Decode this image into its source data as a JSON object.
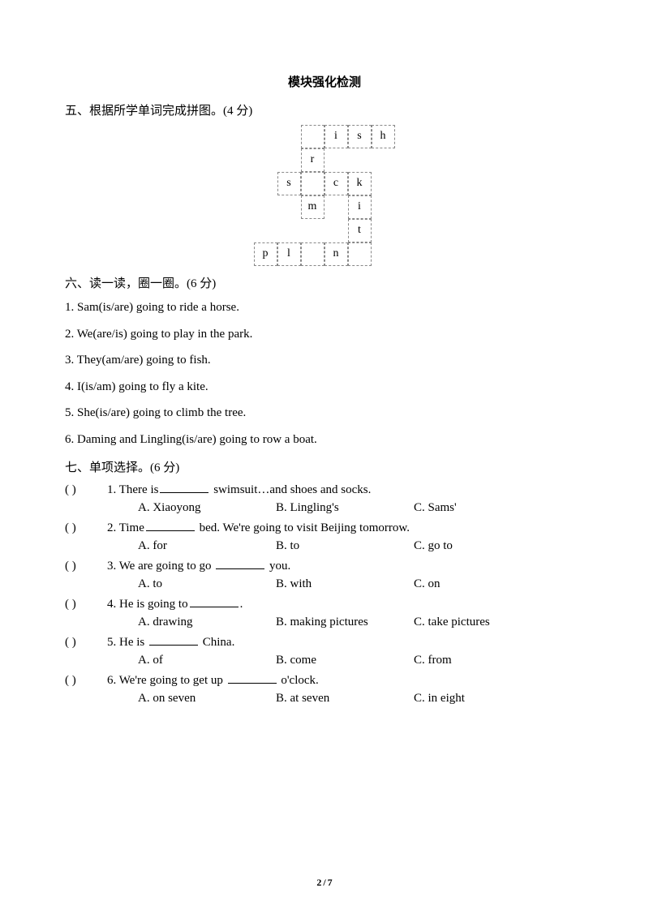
{
  "title": "模块强化检测",
  "section5": {
    "heading": "五、根据所学单词完成拼图。(4 分)",
    "cells": {
      "r0c3": "i",
      "r0c4": "s",
      "r0c5": "h",
      "r1c2": "r",
      "r2c1": "s",
      "r2c3": "c",
      "r2c4": "k",
      "r3c2": "m",
      "r3c4": "i",
      "r4c4": "t",
      "r5c0": "p",
      "r5c1": "l",
      "r5c3": "n"
    }
  },
  "section6": {
    "heading": "六、读一读，圈一圈。(6 分)",
    "items": [
      "1. Sam(is/are) going to ride a horse.",
      "2. We(are/is) going to play in the park.",
      "3. They(am/are) going to fish.",
      "4. I(is/am) going to fly a kite.",
      "5. She(is/are) going to climb the tree.",
      "6. Daming and Lingling(is/are) going to row a boat."
    ]
  },
  "section7": {
    "heading": "七、单项选择。(6 分)",
    "paren": "(      )",
    "questions": [
      {
        "pre": "1. There is",
        "post": " swimsuit…and shoes and socks.",
        "a": "A. Xiaoyong",
        "b": "B. Lingling's",
        "c": "C. Sams'"
      },
      {
        "pre": "2. Time",
        "post": " bed. We're going to visit Beijing tomorrow.",
        "a": "A. for",
        "b": "B. to",
        "c": "C. go to"
      },
      {
        "pre": "3. We are going to go ",
        "post": " you.",
        "a": "A. to",
        "b": "B. with",
        "c": "C. on"
      },
      {
        "pre": "4. He is going to",
        "post": ".",
        "a": "A. drawing",
        "b": "B. making pictures",
        "c": "C. take pictures"
      },
      {
        "pre": "5. He is ",
        "post": " China.",
        "a": "A. of",
        "b": "B. come",
        "c": "C. from"
      },
      {
        "pre": "6. We're going to get up ",
        "post": " o'clock.",
        "a": "A. on seven",
        "b": "B. at seven",
        "c": "C. in eight"
      }
    ]
  },
  "footer": {
    "current": "2",
    "sep": "/",
    "total": "7"
  }
}
